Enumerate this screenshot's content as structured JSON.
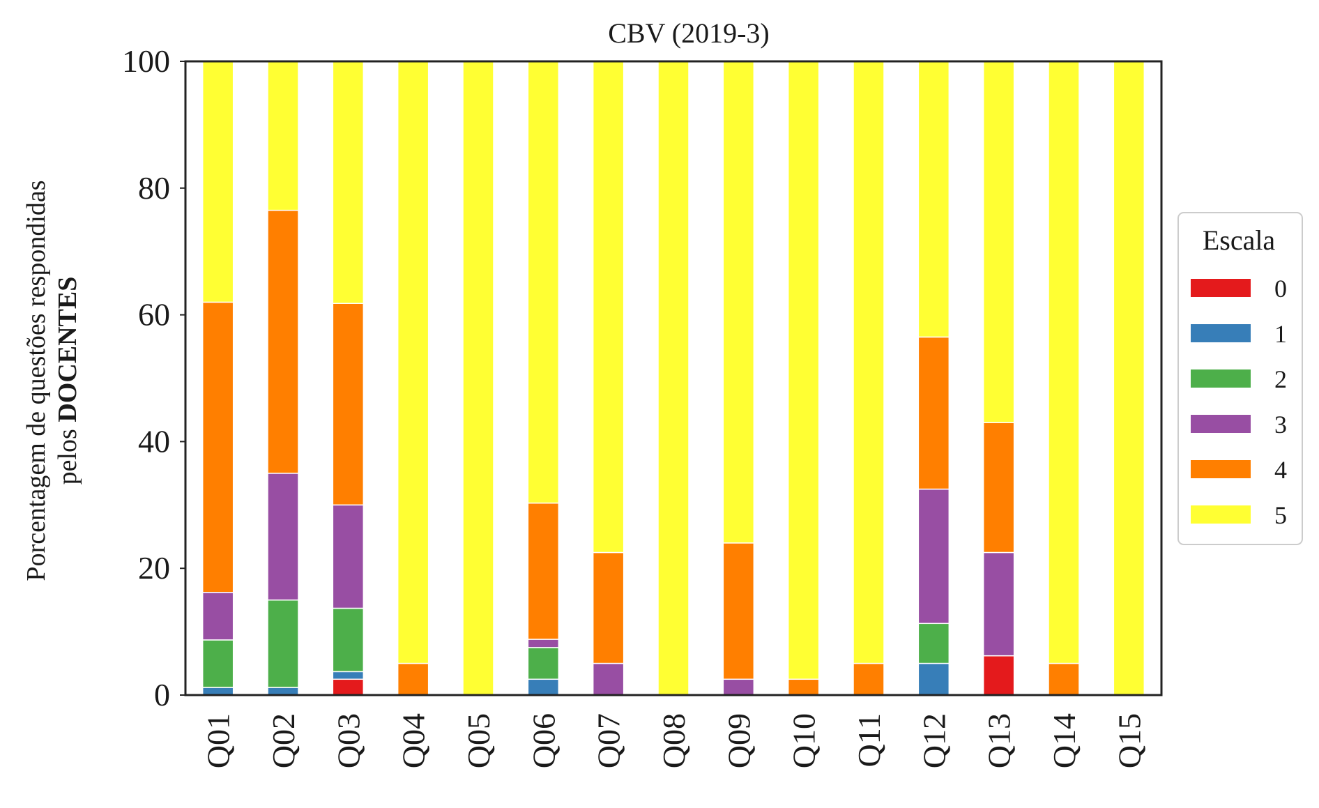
{
  "chart_data": {
    "type": "bar",
    "stacked": true,
    "title": "CBV (2019-3)",
    "ylabel_line1": "Porcentagem de questões respondidas",
    "ylabel_line2_prefix": "pelos ",
    "ylabel_line2_bold": "DOCENTES",
    "xlabel": "",
    "ylim": [
      0,
      100
    ],
    "yticks": [
      "0",
      "20",
      "40",
      "60",
      "80",
      "100"
    ],
    "grid": false,
    "legend_position": "right",
    "legend_title": "Escala",
    "categories": [
      "Q01",
      "Q02",
      "Q03",
      "Q04",
      "Q05",
      "Q06",
      "Q07",
      "Q08",
      "Q09",
      "Q10",
      "Q11",
      "Q12",
      "Q13",
      "Q14",
      "Q15"
    ],
    "series": [
      {
        "name": "0",
        "color": "#e41a1c",
        "values": [
          0,
          0,
          2.5,
          0,
          0,
          0,
          0,
          0,
          0,
          0,
          0,
          0,
          6.2,
          0,
          0
        ]
      },
      {
        "name": "1",
        "color": "#377eb8",
        "values": [
          1.2,
          1.2,
          1.2,
          0,
          0,
          2.5,
          0,
          0,
          0,
          0,
          0,
          5,
          0,
          0,
          0
        ]
      },
      {
        "name": "2",
        "color": "#4daf4a",
        "values": [
          7.5,
          13.8,
          10,
          0,
          0,
          5,
          0,
          0,
          0,
          0,
          0,
          6.3,
          0,
          0,
          0
        ]
      },
      {
        "name": "3",
        "color": "#984ea3",
        "values": [
          7.5,
          20,
          16.3,
          0,
          0,
          1.3,
          5,
          0,
          2.5,
          0,
          0,
          21.2,
          16.3,
          0,
          0
        ]
      },
      {
        "name": "4",
        "color": "#ff7f00",
        "values": [
          45.8,
          41.5,
          31.8,
          5,
          0,
          21.5,
          17.5,
          0,
          21.5,
          2.5,
          5,
          24,
          20.5,
          5,
          0
        ]
      },
      {
        "name": "5",
        "color": "#ffff33",
        "values": [
          38,
          23.5,
          38.2,
          95,
          100,
          69.7,
          77.5,
          100,
          76,
          97.5,
          95,
          43.5,
          57,
          95,
          100
        ]
      }
    ]
  }
}
